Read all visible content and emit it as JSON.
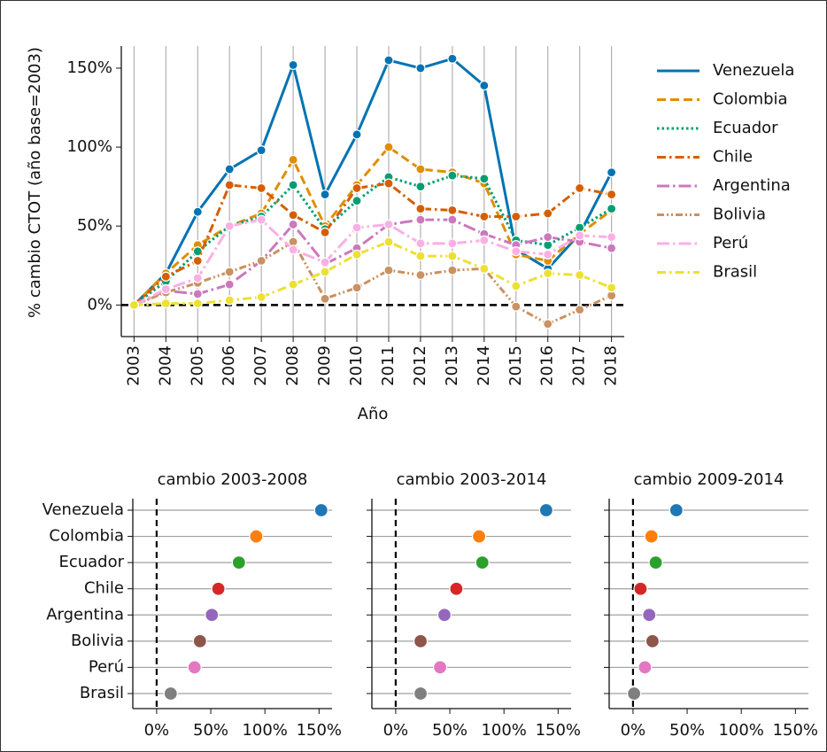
{
  "chart_data": [
    {
      "type": "line",
      "ylabel": "% cambio CTOT (año base=2003)",
      "xlabel": "Año",
      "x": [
        2003,
        2004,
        2005,
        2006,
        2007,
        2008,
        2009,
        2010,
        2011,
        2012,
        2013,
        2014,
        2015,
        2016,
        2017,
        2018
      ],
      "xlim": [
        2002.6,
        2018.4
      ],
      "xticks": [
        2003,
        2004,
        2005,
        2006,
        2007,
        2008,
        2009,
        2010,
        2011,
        2012,
        2013,
        2014,
        2015,
        2016,
        2017,
        2018
      ],
      "ylim": [
        -20,
        164
      ],
      "yticks": [
        {
          "value": 0,
          "label": "0%"
        },
        {
          "value": 50,
          "label": "50%"
        },
        {
          "value": 100,
          "label": "100%"
        },
        {
          "value": 150,
          "label": "150%"
        }
      ],
      "grid": "x",
      "zero_line": true,
      "legend": "right",
      "series": [
        {
          "name": "Venezuela",
          "color": "#0173b2",
          "linestyle": "solid",
          "values": [
            0,
            20,
            59,
            86,
            98,
            152,
            70,
            108,
            155,
            150,
            156,
            139,
            35,
            23,
            45,
            84
          ]
        },
        {
          "name": "Colombia",
          "color": "#de8f05",
          "linestyle": "dashed",
          "values": [
            0,
            20,
            38,
            50,
            58,
            92,
            50,
            76,
            100,
            86,
            84,
            77,
            32,
            28,
            45,
            60
          ]
        },
        {
          "name": "Ecuador",
          "color": "#029e73",
          "linestyle": "dotted",
          "values": [
            0,
            15,
            34,
            50,
            56,
            76,
            48,
            66,
            81,
            75,
            82,
            80,
            41,
            38,
            49,
            61
          ]
        },
        {
          "name": "Chile",
          "color": "#d55e00",
          "linestyle": "dashdot",
          "values": [
            0,
            18,
            28,
            76,
            74,
            57,
            46,
            74,
            77,
            61,
            60,
            56,
            56,
            58,
            74,
            70
          ]
        },
        {
          "name": "Argentina",
          "color": "#cc78bc",
          "linestyle": "longdashdot",
          "values": [
            0,
            9,
            7,
            13,
            28,
            51,
            26,
            36,
            51,
            54,
            54,
            45,
            38,
            43,
            40,
            36
          ]
        },
        {
          "name": "Bolivia",
          "color": "#ca9161",
          "linestyle": "dashdotdot",
          "values": [
            0,
            8,
            14,
            21,
            28,
            40,
            4,
            11,
            22,
            19,
            22,
            23,
            -1,
            -12,
            -3,
            6
          ]
        },
        {
          "name": "Perú",
          "color": "#fbafe4",
          "linestyle": "longdashdot",
          "values": [
            0,
            10,
            17,
            50,
            54,
            35,
            27,
            49,
            51,
            39,
            39,
            41,
            34,
            32,
            44,
            43
          ]
        },
        {
          "name": "Brasil",
          "color": "#ece133",
          "linestyle": "dashdot",
          "values": [
            0,
            1,
            1,
            3,
            5,
            13,
            21,
            32,
            40,
            31,
            31,
            23,
            12,
            20,
            19,
            11
          ]
        }
      ]
    },
    {
      "type": "dot",
      "title": "cambio 2003-2008",
      "categories": [
        "Venezuela",
        "Colombia",
        "Ecuador",
        "Chile",
        "Argentina",
        "Bolivia",
        "Perú",
        "Brasil"
      ],
      "colors": [
        "#1f77b4",
        "#ff7f0e",
        "#2ca02c",
        "#d62728",
        "#9467bd",
        "#8c564b",
        "#e377c2",
        "#7f7f7f"
      ],
      "values": [
        152,
        92,
        76,
        57,
        51,
        40,
        35,
        13
      ],
      "xlim": [
        -22,
        162
      ],
      "xticks": [
        {
          "value": 0,
          "label": "0%"
        },
        {
          "value": 50,
          "label": "50%"
        },
        {
          "value": 100,
          "label": "100%"
        },
        {
          "value": 150,
          "label": "150%"
        }
      ],
      "grid": "y",
      "zero_line": true
    },
    {
      "type": "dot",
      "title": "cambio 2003-2014",
      "values": [
        139,
        77,
        80,
        56,
        45,
        23,
        41,
        23
      ],
      "xlim": [
        -22,
        162
      ],
      "xticks": [
        {
          "value": 0,
          "label": "0%"
        },
        {
          "value": 50,
          "label": "50%"
        },
        {
          "value": 100,
          "label": "100%"
        },
        {
          "value": 150,
          "label": "150%"
        }
      ],
      "grid": "y",
      "zero_line": true
    },
    {
      "type": "dot",
      "title": "cambio 2009-2014",
      "values": [
        40,
        17,
        21,
        7,
        15,
        18,
        11,
        1
      ],
      "xlim": [
        -22,
        162
      ],
      "xticks": [
        {
          "value": 0,
          "label": "0%"
        },
        {
          "value": 50,
          "label": "50%"
        },
        {
          "value": 100,
          "label": "100%"
        },
        {
          "value": 150,
          "label": "150%"
        }
      ],
      "grid": "y",
      "zero_line": true
    }
  ]
}
